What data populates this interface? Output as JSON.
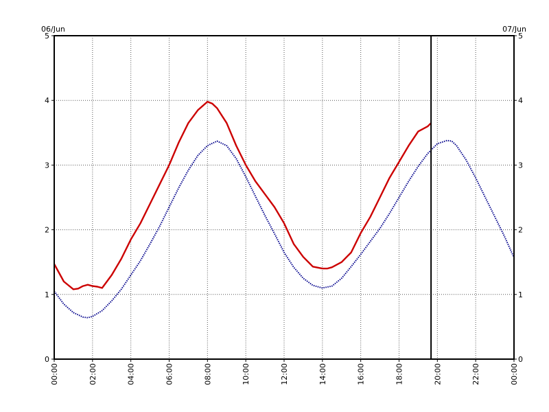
{
  "chart_data": {
    "type": "line",
    "title": "",
    "xlabel": "",
    "ylabel": "",
    "date_labels": {
      "left": "06/Jun",
      "right": "07/Jun"
    },
    "xlim": [
      0,
      24
    ],
    "ylim": [
      0,
      5
    ],
    "x_ticks": [
      "00:00",
      "02:00",
      "04:00",
      "06:00",
      "08:00",
      "10:00",
      "12:00",
      "14:00",
      "16:00",
      "18:00",
      "20:00",
      "22:00",
      "00:00"
    ],
    "y_ticks": [
      "0",
      "1",
      "2",
      "3",
      "4",
      "5"
    ],
    "grid": true,
    "current_time_marker": 19.67,
    "series": [
      {
        "color": "#cc0000",
        "style": "solid",
        "x": [
          0,
          0.5,
          1,
          1.25,
          1.5,
          1.75,
          2,
          2.25,
          2.5,
          3,
          3.5,
          4,
          4.5,
          5,
          5.5,
          6,
          6.5,
          7,
          7.5,
          8,
          8.25,
          8.5,
          9,
          9.5,
          10,
          10.5,
          11,
          11.5,
          12,
          12.5,
          13,
          13.5,
          14,
          14.25,
          14.5,
          15,
          15.5,
          16,
          16.5,
          17,
          17.5,
          18,
          18.5,
          19,
          19.5,
          19.67
        ],
        "values": [
          1.47,
          1.2,
          1.08,
          1.09,
          1.13,
          1.15,
          1.13,
          1.12,
          1.1,
          1.3,
          1.55,
          1.85,
          2.1,
          2.4,
          2.7,
          3.0,
          3.35,
          3.65,
          3.85,
          3.98,
          3.95,
          3.88,
          3.65,
          3.3,
          3.0,
          2.75,
          2.55,
          2.35,
          2.1,
          1.78,
          1.58,
          1.43,
          1.4,
          1.4,
          1.42,
          1.5,
          1.65,
          1.95,
          2.2,
          2.5,
          2.8,
          3.05,
          3.3,
          3.52,
          3.6,
          3.65
        ]
      },
      {
        "color": "#00008b",
        "style": "dotted",
        "x": [
          0,
          0.5,
          1,
          1.5,
          1.75,
          2,
          2.5,
          3,
          3.5,
          4,
          4.5,
          5,
          5.5,
          6,
          6.5,
          7,
          7.5,
          8,
          8.5,
          9,
          9.5,
          10,
          10.5,
          11,
          11.5,
          12,
          12.5,
          13,
          13.5,
          14,
          14.5,
          15,
          15.5,
          16,
          16.5,
          17,
          17.5,
          18,
          18.5,
          19,
          19.5,
          20,
          20.5,
          20.75,
          21,
          21.5,
          22,
          22.5,
          23,
          23.5,
          24
        ],
        "values": [
          1.05,
          0.85,
          0.72,
          0.65,
          0.64,
          0.66,
          0.75,
          0.9,
          1.08,
          1.3,
          1.52,
          1.78,
          2.05,
          2.35,
          2.65,
          2.92,
          3.15,
          3.3,
          3.37,
          3.3,
          3.1,
          2.82,
          2.52,
          2.22,
          1.94,
          1.65,
          1.42,
          1.25,
          1.14,
          1.1,
          1.13,
          1.25,
          1.43,
          1.62,
          1.82,
          2.02,
          2.25,
          2.5,
          2.75,
          2.98,
          3.18,
          3.33,
          3.38,
          3.37,
          3.3,
          3.08,
          2.8,
          2.5,
          2.2,
          1.9,
          1.57
        ]
      }
    ]
  }
}
